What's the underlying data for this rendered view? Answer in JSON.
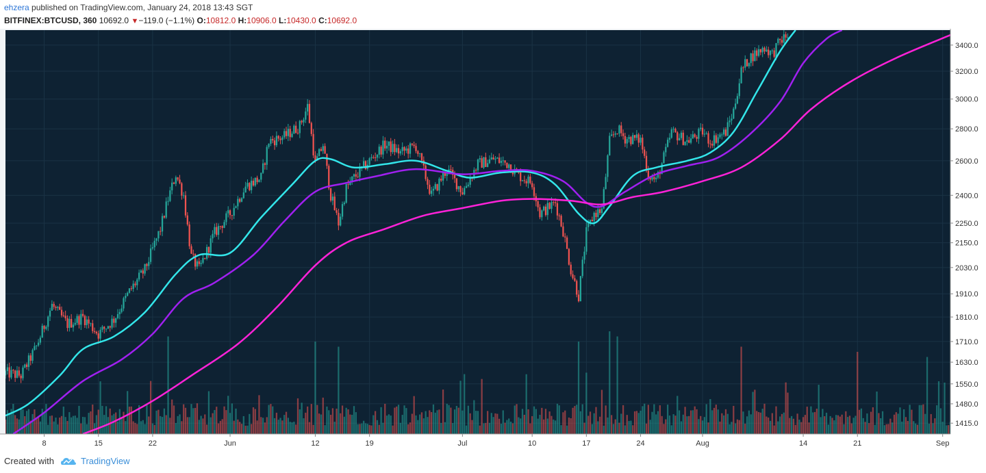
{
  "header": {
    "author": "ehzera",
    "published_text": " published on TradingView.com, January 24, 2018 13:43 SGT",
    "symbol": "BITFINEX:BTCUSD, 360",
    "last": "10692.0",
    "change": "−119.0 (−1.1%)",
    "o_label": "O:",
    "o_value": "10812.0",
    "h_label": "H:",
    "h_value": "10906.0",
    "l_label": "L:",
    "l_value": "10430.0",
    "c_label": "C:",
    "c_value": "10692.0"
  },
  "footer": {
    "created_with": "Created with",
    "brand": "TradingView"
  },
  "colors": {
    "background": "#0e2233",
    "grid": "#1a3345",
    "up": "#26a69a",
    "down": "#ef5350",
    "ma_fast": "#33e6ea",
    "ma_mid": "#a020f0",
    "ma_slow": "#ff22d8",
    "axis_text": "#333333"
  },
  "chart_data": {
    "type": "candlestick",
    "x_range": [
      "May 3",
      "Sep 2"
    ],
    "x_ticks": [
      "8",
      "15",
      "22",
      "Jun",
      "12",
      "19",
      "Jul",
      "10",
      "17",
      "24",
      "Aug",
      "14",
      "21",
      "Sep"
    ],
    "x_tick_dates": [
      "May 8",
      "May 15",
      "May 22",
      "Jun 1",
      "Jun 12",
      "Jun 19",
      "Jul 1",
      "Jul 10",
      "Jul 17",
      "Jul 24",
      "Aug 1",
      "Aug 14",
      "Aug 21",
      "Sep 1"
    ],
    "y_scale": "log",
    "y_range": [
      1380,
      3520
    ],
    "y_ticks": [
      1415,
      1480,
      1550,
      1630,
      1710,
      1810,
      1910,
      2030,
      2150,
      2250,
      2400,
      2600,
      2800,
      3000,
      3200,
      3400
    ],
    "price_path": [
      {
        "date": "May 3",
        "close": 1590
      },
      {
        "date": "May 5",
        "close": 1580
      },
      {
        "date": "May 7",
        "close": 1690
      },
      {
        "date": "May 9",
        "close": 1860
      },
      {
        "date": "May 11",
        "close": 1780
      },
      {
        "date": "May 13",
        "close": 1810
      },
      {
        "date": "May 15",
        "close": 1740
      },
      {
        "date": "May 17",
        "close": 1800
      },
      {
        "date": "May 19",
        "close": 1920
      },
      {
        "date": "May 21",
        "close": 2020
      },
      {
        "date": "May 23",
        "close": 2220
      },
      {
        "date": "May 24",
        "close": 2380
      },
      {
        "date": "May 25",
        "close": 2520
      },
      {
        "date": "May 26",
        "close": 2400
      },
      {
        "date": "May 27",
        "close": 2080
      },
      {
        "date": "May 28",
        "close": 2020
      },
      {
        "date": "May 30",
        "close": 2200
      },
      {
        "date": "Jun 1",
        "close": 2300
      },
      {
        "date": "Jun 3",
        "close": 2450
      },
      {
        "date": "Jun 5",
        "close": 2500
      },
      {
        "date": "Jun 6",
        "close": 2720
      },
      {
        "date": "Jun 8",
        "close": 2750
      },
      {
        "date": "Jun 10",
        "close": 2820
      },
      {
        "date": "Jun 11",
        "close": 2950
      },
      {
        "date": "Jun 12",
        "close": 2580
      },
      {
        "date": "Jun 13",
        "close": 2700
      },
      {
        "date": "Jun 14",
        "close": 2400
      },
      {
        "date": "Jun 15",
        "close": 2250
      },
      {
        "date": "Jun 16",
        "close": 2440
      },
      {
        "date": "Jun 17",
        "close": 2500
      },
      {
        "date": "Jun 19",
        "close": 2600
      },
      {
        "date": "Jun 21",
        "close": 2700
      },
      {
        "date": "Jun 23",
        "close": 2650
      },
      {
        "date": "Jun 25",
        "close": 2690
      },
      {
        "date": "Jun 27",
        "close": 2400
      },
      {
        "date": "Jun 29",
        "close": 2550
      },
      {
        "date": "Jul 1",
        "close": 2420
      },
      {
        "date": "Jul 3",
        "close": 2580
      },
      {
        "date": "Jul 5",
        "close": 2610
      },
      {
        "date": "Jul 7",
        "close": 2580
      },
      {
        "date": "Jul 8",
        "close": 2520
      },
      {
        "date": "Jul 10",
        "close": 2470
      },
      {
        "date": "Jul 11",
        "close": 2300
      },
      {
        "date": "Jul 13",
        "close": 2360
      },
      {
        "date": "Jul 14",
        "close": 2210
      },
      {
        "date": "Jul 15",
        "close": 2020
      },
      {
        "date": "Jul 16",
        "close": 1900
      },
      {
        "date": "Jul 17",
        "close": 2200
      },
      {
        "date": "Jul 18",
        "close": 2300
      },
      {
        "date": "Jul 19",
        "close": 2320
      },
      {
        "date": "Jul 20",
        "close": 2720
      },
      {
        "date": "Jul 21",
        "close": 2800
      },
      {
        "date": "Jul 22",
        "close": 2740
      },
      {
        "date": "Jul 24",
        "close": 2730
      },
      {
        "date": "Jul 25",
        "close": 2520
      },
      {
        "date": "Jul 26",
        "close": 2480
      },
      {
        "date": "Jul 27",
        "close": 2620
      },
      {
        "date": "Jul 28",
        "close": 2780
      },
      {
        "date": "Jul 30",
        "close": 2720
      },
      {
        "date": "Aug 1",
        "close": 2780
      },
      {
        "date": "Aug 2",
        "close": 2720
      },
      {
        "date": "Aug 4",
        "close": 2780
      },
      {
        "date": "Aug 5",
        "close": 2920
      },
      {
        "date": "Aug 6",
        "close": 3200
      },
      {
        "date": "Aug 7",
        "close": 3300
      },
      {
        "date": "Aug 9",
        "close": 3380
      },
      {
        "date": "Aug 10",
        "close": 3330
      },
      {
        "date": "Aug 11",
        "close": 3430
      },
      {
        "date": "Aug 12",
        "close": 3480
      }
    ],
    "moving_averages": [
      {
        "color": "#33e6ea",
        "points": [
          {
            "date": "May 3",
            "value": 1440
          },
          {
            "date": "May 6",
            "value": 1480
          },
          {
            "date": "May 10",
            "value": 1580
          },
          {
            "date": "May 13",
            "value": 1680
          },
          {
            "date": "May 17",
            "value": 1730
          },
          {
            "date": "May 21",
            "value": 1830
          },
          {
            "date": "May 25",
            "value": 2000
          },
          {
            "date": "May 28",
            "value": 2090
          },
          {
            "date": "Jun 1",
            "value": 2100
          },
          {
            "date": "Jun 5",
            "value": 2280
          },
          {
            "date": "Jun 9",
            "value": 2460
          },
          {
            "date": "Jun 12",
            "value": 2600
          },
          {
            "date": "Jun 14",
            "value": 2610
          },
          {
            "date": "Jun 17",
            "value": 2560
          },
          {
            "date": "Jun 21",
            "value": 2580
          },
          {
            "date": "Jun 25",
            "value": 2600
          },
          {
            "date": "Jun 29",
            "value": 2540
          },
          {
            "date": "Jul 2",
            "value": 2500
          },
          {
            "date": "Jul 6",
            "value": 2530
          },
          {
            "date": "Jul 10",
            "value": 2530
          },
          {
            "date": "Jul 13",
            "value": 2460
          },
          {
            "date": "Jul 16",
            "value": 2300
          },
          {
            "date": "Jul 18",
            "value": 2250
          },
          {
            "date": "Jul 20",
            "value": 2340
          },
          {
            "date": "Jul 23",
            "value": 2510
          },
          {
            "date": "Jul 26",
            "value": 2560
          },
          {
            "date": "Jul 30",
            "value": 2600
          },
          {
            "date": "Aug 2",
            "value": 2650
          },
          {
            "date": "Aug 5",
            "value": 2780
          },
          {
            "date": "Aug 8",
            "value": 3050
          },
          {
            "date": "Aug 11",
            "value": 3350
          },
          {
            "date": "Aug 13",
            "value": 3520
          }
        ]
      },
      {
        "color": "#a020f0",
        "points": [
          {
            "date": "May 4",
            "value": 1380
          },
          {
            "date": "May 8",
            "value": 1450
          },
          {
            "date": "May 13",
            "value": 1560
          },
          {
            "date": "May 18",
            "value": 1640
          },
          {
            "date": "May 22",
            "value": 1740
          },
          {
            "date": "May 26",
            "value": 1890
          },
          {
            "date": "May 30",
            "value": 1960
          },
          {
            "date": "Jun 4",
            "value": 2090
          },
          {
            "date": "Jun 8",
            "value": 2260
          },
          {
            "date": "Jun 12",
            "value": 2420
          },
          {
            "date": "Jun 16",
            "value": 2470
          },
          {
            "date": "Jun 20",
            "value": 2510
          },
          {
            "date": "Jun 25",
            "value": 2550
          },
          {
            "date": "Jul 1",
            "value": 2520
          },
          {
            "date": "Jul 6",
            "value": 2540
          },
          {
            "date": "Jul 10",
            "value": 2540
          },
          {
            "date": "Jul 14",
            "value": 2480
          },
          {
            "date": "Jul 17",
            "value": 2360
          },
          {
            "date": "Jul 19",
            "value": 2340
          },
          {
            "date": "Jul 22",
            "value": 2420
          },
          {
            "date": "Jul 26",
            "value": 2520
          },
          {
            "date": "Jul 30",
            "value": 2570
          },
          {
            "date": "Aug 3",
            "value": 2620
          },
          {
            "date": "Aug 7",
            "value": 2760
          },
          {
            "date": "Aug 11",
            "value": 2980
          },
          {
            "date": "Aug 14",
            "value": 3260
          },
          {
            "date": "Aug 17",
            "value": 3450
          },
          {
            "date": "Aug 19",
            "value": 3520
          }
        ]
      },
      {
        "color": "#ff22d8",
        "points": [
          {
            "date": "May 13",
            "value": 1380
          },
          {
            "date": "May 17",
            "value": 1420
          },
          {
            "date": "May 22",
            "value": 1490
          },
          {
            "date": "May 27",
            "value": 1580
          },
          {
            "date": "Jun 2",
            "value": 1700
          },
          {
            "date": "Jun 7",
            "value": 1850
          },
          {
            "date": "Jun 12",
            "value": 2040
          },
          {
            "date": "Jun 16",
            "value": 2150
          },
          {
            "date": "Jun 21",
            "value": 2220
          },
          {
            "date": "Jun 26",
            "value": 2290
          },
          {
            "date": "Jul 1",
            "value": 2330
          },
          {
            "date": "Jul 6",
            "value": 2370
          },
          {
            "date": "Jul 10",
            "value": 2380
          },
          {
            "date": "Jul 15",
            "value": 2370
          },
          {
            "date": "Jul 19",
            "value": 2350
          },
          {
            "date": "Jul 23",
            "value": 2390
          },
          {
            "date": "Jul 27",
            "value": 2420
          },
          {
            "date": "Aug 1",
            "value": 2480
          },
          {
            "date": "Aug 6",
            "value": 2560
          },
          {
            "date": "Aug 11",
            "value": 2730
          },
          {
            "date": "Aug 15",
            "value": 2930
          },
          {
            "date": "Aug 20",
            "value": 3120
          },
          {
            "date": "Aug 26",
            "value": 3300
          },
          {
            "date": "Sep 2",
            "value": 3480
          }
        ]
      }
    ],
    "volume_spikes": [
      {
        "date": "May 24",
        "relative": 0.95
      },
      {
        "date": "Jun 12",
        "relative": 0.9
      },
      {
        "date": "Jun 15",
        "relative": 0.85
      },
      {
        "date": "Jul 16",
        "relative": 0.9
      },
      {
        "date": "Jul 20",
        "relative": 1.0
      },
      {
        "date": "Jul 21",
        "relative": 0.95
      },
      {
        "date": "Aug 6",
        "relative": 0.85
      },
      {
        "date": "Aug 21",
        "relative": 0.8
      },
      {
        "date": "Aug 30",
        "relative": 0.75
      }
    ]
  }
}
